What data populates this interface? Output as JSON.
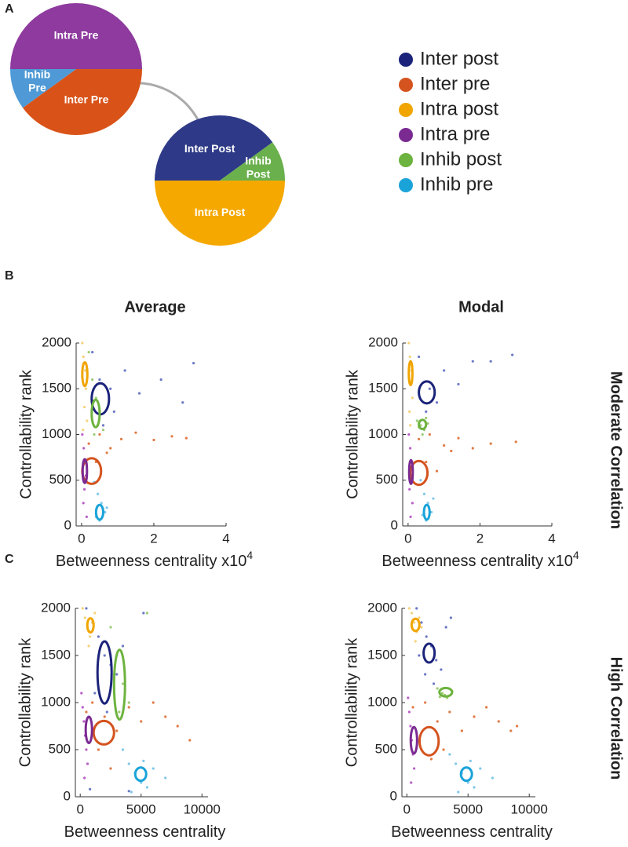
{
  "chart_data": [
    {
      "type": "pie",
      "panel_label": "A",
      "labels": [
        [
          "Intra Pre"
        ],
        [
          "Inter Pre"
        ],
        [
          "Inhib",
          "Pre"
        ]
      ],
      "values": [
        50,
        40,
        10
      ],
      "colors": [
        "#8e3a9e",
        "#d95319",
        "#4f9ad6"
      ]
    },
    {
      "type": "pie",
      "labels": [
        [
          "Inter Post"
        ],
        [
          "Inhib",
          "Post"
        ],
        [
          "Intra Post"
        ]
      ],
      "values": [
        40,
        10,
        50
      ],
      "colors": [
        "#2e3a87",
        "#6ab04c",
        "#f5a800"
      ]
    },
    {
      "type": "scatter",
      "panel_label": "B",
      "title": "Average",
      "x_label": "Betweenness centrality x10",
      "x_label_exponent": "4",
      "y_label": "Controllability rank",
      "xlim": [
        -0.15,
        4
      ],
      "xticks": [
        0,
        2,
        4
      ],
      "ylim": [
        0,
        2000
      ],
      "yticks": [
        0,
        500,
        1000,
        1500,
        2000
      ],
      "series": [
        {
          "name": "Inter post",
          "color": "#6b79c4",
          "ellipse_color": "#1b237a",
          "x": [
            0.3,
            0.5,
            0.8,
            1.2,
            1.6,
            2.2,
            2.8,
            3.1,
            0.6,
            0.9
          ],
          "y": [
            1900,
            1600,
            1500,
            1700,
            1450,
            1600,
            1350,
            1780,
            1100,
            1250
          ],
          "ellipse": {
            "cx": 0.52,
            "cy": 1390,
            "rx": 0.24,
            "ry": 170
          }
        },
        {
          "name": "Inter pre",
          "color": "#e07a45",
          "ellipse_color": "#d4531e",
          "x": [
            0.2,
            0.5,
            0.8,
            1.1,
            1.5,
            2.0,
            2.5,
            2.9,
            0.4,
            0.7
          ],
          "y": [
            900,
            1000,
            850,
            950,
            1020,
            940,
            980,
            960,
            700,
            800
          ],
          "ellipse": {
            "cx": 0.28,
            "cy": 600,
            "rx": 0.26,
            "ry": 140
          }
        },
        {
          "name": "Intra post",
          "color": "#f6d27c",
          "ellipse_color": "#f0a500",
          "x": [
            0.02,
            0.05,
            0.1,
            0.12,
            0.08,
            0.15,
            0.04
          ],
          "y": [
            2000,
            1850,
            1700,
            1500,
            1300,
            1150,
            1050
          ],
          "ellipse": {
            "cx": 0.09,
            "cy": 1660,
            "rx": 0.07,
            "ry": 130
          }
        },
        {
          "name": "Intra pre",
          "color": "#b95fc7",
          "ellipse_color": "#7b2a92",
          "x": [
            0.02,
            0.06,
            0.1,
            0.12,
            0.08,
            0.05,
            0.14
          ],
          "y": [
            1000,
            850,
            700,
            550,
            400,
            250,
            100
          ],
          "ellipse": {
            "cx": 0.09,
            "cy": 600,
            "rx": 0.06,
            "ry": 130
          }
        },
        {
          "name": "Inhib post",
          "color": "#9ccc74",
          "ellipse_color": "#6db33f",
          "x": [
            0.2,
            0.3,
            0.4,
            0.5,
            0.45,
            0.35,
            0.6
          ],
          "y": [
            1900,
            1600,
            1400,
            1250,
            1100,
            1000,
            1050
          ],
          "ellipse": {
            "cx": 0.39,
            "cy": 1230,
            "rx": 0.11,
            "ry": 150
          }
        },
        {
          "name": "Inhib pre",
          "color": "#7fc8ea",
          "ellipse_color": "#1aa3d9",
          "x": [
            0.35,
            0.45,
            0.55,
            0.65,
            0.5,
            0.7,
            0.4
          ],
          "y": [
            480,
            350,
            250,
            150,
            60,
            200,
            100
          ],
          "ellipse": {
            "cx": 0.5,
            "cy": 150,
            "rx": 0.1,
            "ry": 80
          }
        }
      ]
    },
    {
      "type": "scatter",
      "title": "Modal",
      "side_label": "Moderate Correlation",
      "x_label": "Betweenness centrality x10",
      "x_label_exponent": "4",
      "y_label": "Controllability rank",
      "xlim": [
        -0.15,
        4
      ],
      "xticks": [
        0,
        2,
        4
      ],
      "ylim": [
        0,
        2000
      ],
      "yticks": [
        0,
        500,
        1000,
        1500,
        2000
      ],
      "series": [
        {
          "color": "#6b79c4",
          "ellipse_color": "#1b237a",
          "x": [
            0.3,
            0.6,
            1.0,
            1.4,
            1.8,
            2.3,
            2.9,
            0.5,
            0.8
          ],
          "y": [
            1850,
            1500,
            1700,
            1550,
            1800,
            1800,
            1870,
            1250,
            1350
          ],
          "ellipse": {
            "cx": 0.52,
            "cy": 1460,
            "rx": 0.22,
            "ry": 120
          }
        },
        {
          "color": "#e07a45",
          "ellipse_color": "#d4531e",
          "x": [
            0.3,
            0.6,
            1.0,
            1.4,
            1.8,
            2.3,
            3.0,
            0.5,
            0.8,
            1.2
          ],
          "y": [
            950,
            1000,
            880,
            960,
            850,
            900,
            920,
            700,
            600,
            820
          ],
          "ellipse": {
            "cx": 0.3,
            "cy": 580,
            "rx": 0.24,
            "ry": 130
          }
        },
        {
          "color": "#f6d27c",
          "ellipse_color": "#f0a500",
          "x": [
            0.02,
            0.05,
            0.1,
            0.08,
            0.12,
            0.04,
            0.06
          ],
          "y": [
            2000,
            1850,
            1700,
            1550,
            1400,
            1250,
            1100
          ],
          "ellipse": {
            "cx": 0.07,
            "cy": 1670,
            "rx": 0.05,
            "ry": 130
          }
        },
        {
          "color": "#b95fc7",
          "ellipse_color": "#7b2a92",
          "x": [
            0.02,
            0.06,
            0.1,
            0.08,
            0.04,
            0.12,
            0.07
          ],
          "y": [
            1000,
            850,
            700,
            550,
            400,
            250,
            100
          ],
          "ellipse": {
            "cx": 0.08,
            "cy": 590,
            "rx": 0.05,
            "ry": 130
          }
        },
        {
          "color": "#9ccc74",
          "ellipse_color": "#6db33f",
          "x": [
            0.25,
            0.35,
            0.45,
            0.55,
            0.4,
            0.3,
            0.5
          ],
          "y": [
            1150,
            1100,
            1050,
            1120,
            1000,
            1080,
            1180
          ],
          "ellipse": {
            "cx": 0.4,
            "cy": 1110,
            "rx": 0.1,
            "ry": 50
          }
        },
        {
          "color": "#7fc8ea",
          "ellipse_color": "#1aa3d9",
          "x": [
            0.35,
            0.45,
            0.55,
            0.65,
            0.5,
            0.7,
            0.4
          ],
          "y": [
            500,
            350,
            250,
            150,
            60,
            300,
            120
          ],
          "ellipse": {
            "cx": 0.52,
            "cy": 150,
            "rx": 0.08,
            "ry": 80
          }
        }
      ]
    },
    {
      "type": "scatter",
      "panel_label": "C",
      "x_label": "Betweenness centrality",
      "y_label": "Controllability rank",
      "xlim": [
        -400,
        10500
      ],
      "xticks": [
        0,
        5000,
        10000
      ],
      "ylim": [
        0,
        2000
      ],
      "yticks": [
        0,
        500,
        1000,
        1500,
        2000
      ],
      "series": [
        {
          "color": "#6b79c4",
          "ellipse_color": "#1b237a",
          "x": [
            500,
            1000,
            1500,
            2000,
            2500,
            3000,
            3500,
            1200,
            2200,
            800,
            4000,
            5200
          ],
          "y": [
            2000,
            1850,
            1700,
            1500,
            1400,
            1300,
            1600,
            1100,
            900,
            80,
            60,
            1950
          ],
          "ellipse": {
            "cx": 2000,
            "cy": 1320,
            "rx": 580,
            "ry": 330
          }
        },
        {
          "color": "#e07a45",
          "ellipse_color": "#d4531e",
          "x": [
            500,
            1000,
            2000,
            3000,
            4000,
            5000,
            6000,
            7000,
            8000,
            9000,
            1500,
            2500
          ],
          "y": [
            900,
            1000,
            850,
            700,
            950,
            800,
            1000,
            850,
            750,
            600,
            500,
            300
          ],
          "ellipse": {
            "cx": 1940,
            "cy": 680,
            "rx": 840,
            "ry": 125
          }
        },
        {
          "color": "#f6d27c",
          "ellipse_color": "#f0a500",
          "x": [
            200,
            400,
            600,
            800,
            1000,
            1200,
            700
          ],
          "y": [
            2000,
            1900,
            1800,
            1700,
            1850,
            1950,
            1600
          ],
          "ellipse": {
            "cx": 840,
            "cy": 1820,
            "rx": 260,
            "ry": 75
          }
        },
        {
          "color": "#b95fc7",
          "ellipse_color": "#7b2a92",
          "x": [
            100,
            200,
            300,
            400,
            500,
            600,
            350
          ],
          "y": [
            1100,
            950,
            800,
            650,
            500,
            350,
            200
          ],
          "ellipse": {
            "cx": 710,
            "cy": 710,
            "rx": 260,
            "ry": 140
          }
        },
        {
          "color": "#9ccc74",
          "ellipse_color": "#6db33f",
          "x": [
            2500,
            3000,
            3500,
            4000,
            3200,
            2800,
            5500
          ],
          "y": [
            1800,
            1500,
            1200,
            1000,
            900,
            1300,
            1950
          ],
          "ellipse": {
            "cx": 3230,
            "cy": 1190,
            "rx": 450,
            "ry": 370
          }
        },
        {
          "color": "#7fc8ea",
          "ellipse_color": "#1aa3d9",
          "x": [
            3500,
            4000,
            4500,
            5000,
            5500,
            6000,
            7000,
            4200,
            5200
          ],
          "y": [
            500,
            350,
            250,
            150,
            100,
            300,
            200,
            50,
            380
          ],
          "ellipse": {
            "cx": 4970,
            "cy": 240,
            "rx": 450,
            "ry": 70
          }
        }
      ]
    },
    {
      "type": "scatter",
      "side_label": "High Correlation",
      "x_label": "Betweenness centrality",
      "y_label": "Controllability rank",
      "xlim": [
        -400,
        10500
      ],
      "xticks": [
        0,
        5000,
        10000
      ],
      "ylim": [
        0,
        2000
      ],
      "yticks": [
        0,
        500,
        1000,
        1500,
        2000
      ],
      "series": [
        {
          "color": "#6b79c4",
          "ellipse_color": "#1b237a",
          "x": [
            800,
            1200,
            1600,
            2000,
            2400,
            2800,
            3200,
            1500,
            2200,
            3600,
            1000
          ],
          "y": [
            2000,
            1850,
            1700,
            1600,
            1450,
            1350,
            1800,
            1300,
            1200,
            1900,
            1500
          ],
          "ellipse": {
            "cx": 1820,
            "cy": 1525,
            "rx": 450,
            "ry": 100
          }
        },
        {
          "color": "#e07a45",
          "ellipse_color": "#d4531e",
          "x": [
            500,
            1500,
            2500,
            3500,
            4500,
            5500,
            6500,
            7500,
            8500,
            9000,
            2000,
            3000
          ],
          "y": [
            950,
            1000,
            800,
            900,
            700,
            850,
            950,
            800,
            700,
            750,
            400,
            500
          ],
          "ellipse": {
            "cx": 1820,
            "cy": 590,
            "rx": 780,
            "ry": 150
          }
        },
        {
          "color": "#f6d27c",
          "ellipse_color": "#f0a500",
          "x": [
            200,
            400,
            600,
            800,
            1000,
            1200,
            700
          ],
          "y": [
            2000,
            1950,
            1850,
            1750,
            1900,
            1800,
            1650
          ],
          "ellipse": {
            "cx": 710,
            "cy": 1825,
            "rx": 320,
            "ry": 65
          }
        },
        {
          "color": "#b95fc7",
          "ellipse_color": "#7b2a92",
          "x": [
            100,
            200,
            300,
            400,
            500,
            600,
            350
          ],
          "y": [
            1050,
            900,
            750,
            600,
            450,
            300,
            150
          ],
          "ellipse": {
            "cx": 580,
            "cy": 600,
            "rx": 260,
            "ry": 140
          }
        },
        {
          "color": "#9ccc74",
          "ellipse_color": "#6db33f",
          "x": [
            2500,
            2900,
            3300,
            3700,
            3100,
            2700
          ],
          "y": [
            1150,
            1100,
            1050,
            1120,
            1080,
            1060
          ],
          "ellipse": {
            "cx": 3180,
            "cy": 1110,
            "rx": 520,
            "ry": 45
          }
        },
        {
          "color": "#7fc8ea",
          "ellipse_color": "#1aa3d9",
          "x": [
            3500,
            4000,
            4500,
            5000,
            5500,
            6000,
            7000,
            4200,
            5200
          ],
          "y": [
            450,
            350,
            250,
            150,
            100,
            300,
            200,
            50,
            380
          ],
          "ellipse": {
            "cx": 4870,
            "cy": 240,
            "rx": 450,
            "ry": 70
          }
        }
      ]
    }
  ]
}
